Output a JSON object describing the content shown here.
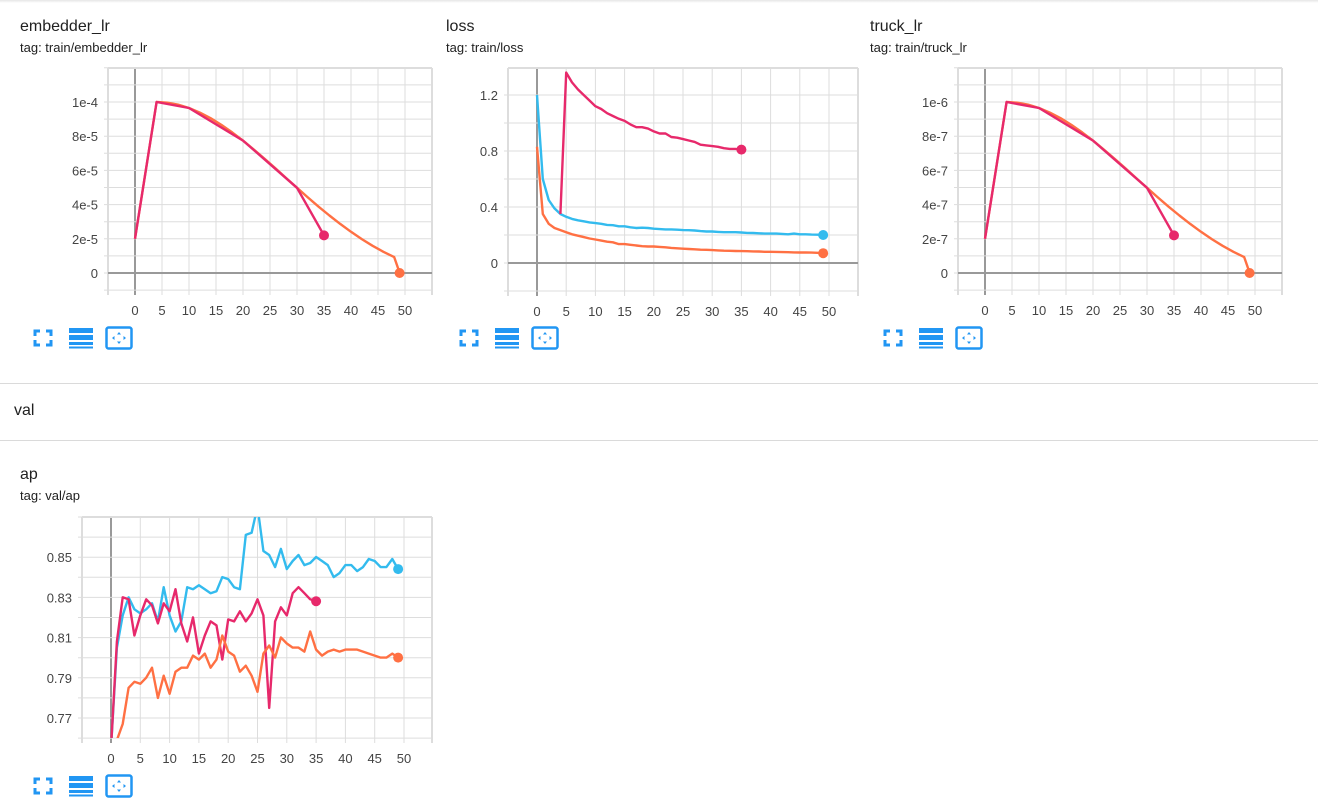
{
  "sections": {
    "val_title": "val"
  },
  "cards": [
    {
      "id": "embedder_lr",
      "title": "embedder_lr",
      "tag": "tag: train/embedder_lr",
      "y_tick_labels": [
        "1e-4",
        "8e-5",
        "6e-5",
        "4e-5",
        "2e-5",
        "0"
      ],
      "x_tick_labels": [
        "0",
        "5",
        "10",
        "15",
        "20",
        "25",
        "30",
        "35",
        "40",
        "45",
        "50"
      ]
    },
    {
      "id": "loss",
      "title": "loss",
      "tag": "tag: train/loss",
      "y_tick_labels": [
        "1.2",
        "0.8",
        "0.4",
        "0"
      ],
      "x_tick_labels": [
        "0",
        "5",
        "10",
        "15",
        "20",
        "25",
        "30",
        "35",
        "40",
        "45",
        "50"
      ]
    },
    {
      "id": "truck_lr",
      "title": "truck_lr",
      "tag": "tag: train/truck_lr",
      "y_tick_labels": [
        "1e-6",
        "8e-7",
        "6e-7",
        "4e-7",
        "2e-7",
        "0"
      ],
      "x_tick_labels": [
        "0",
        "5",
        "10",
        "15",
        "20",
        "25",
        "30",
        "35",
        "40",
        "45",
        "50"
      ]
    },
    {
      "id": "ap",
      "title": "ap",
      "tag": "tag: val/ap",
      "y_tick_labels": [
        "0.85",
        "0.83",
        "0.81",
        "0.79",
        "0.77"
      ],
      "x_tick_labels": [
        "0",
        "5",
        "10",
        "15",
        "20",
        "25",
        "30",
        "35",
        "40",
        "45",
        "50"
      ]
    }
  ],
  "icons": {
    "expand": "fullscreen-icon",
    "data": "list-icon",
    "fit": "fit-domain-icon"
  },
  "colors": {
    "orange": "#ff7043",
    "cyan": "#33bbee",
    "pink": "#e7296b",
    "grid": "#dddddd",
    "axis": "#999999",
    "icon_blue": "#2196f3"
  },
  "chart_data": [
    {
      "type": "line",
      "title": "embedder_lr",
      "subtitle": "tag: train/embedder_lr",
      "xlabel": "",
      "ylabel": "",
      "xlim": [
        -5,
        55
      ],
      "ylim": [
        -1e-05,
        0.00012
      ],
      "grid": true,
      "legend": "none",
      "series": [
        {
          "name": "run-orange",
          "color": "#ff7043",
          "x": [
            0,
            4,
            6,
            8,
            10,
            12,
            14,
            16,
            18,
            20,
            22,
            24,
            26,
            28,
            30,
            32,
            34,
            36,
            38,
            40,
            42,
            44,
            46,
            48,
            49
          ],
          "y": [
            2e-05,
            0.0001,
            9.96e-05,
            9.84e-05,
            9.65e-05,
            9.38e-05,
            9.05e-05,
            8.66e-05,
            8.22e-05,
            7.74e-05,
            7.22e-05,
            6.68e-05,
            6.12e-05,
            5.55e-05,
            4.98e-05,
            4.42e-05,
            3.88e-05,
            3.36e-05,
            2.87e-05,
            2.41e-05,
            1.98e-05,
            1.59e-05,
            1.24e-05,
            9.3e-06,
            2e-07
          ]
        },
        {
          "name": "run-pink",
          "color": "#e7296b",
          "x": [
            0,
            4,
            10,
            20,
            30,
            35
          ],
          "y": [
            2e-05,
            0.0001,
            9.65e-05,
            7.74e-05,
            4.98e-05,
            2.2e-05
          ]
        }
      ],
      "markers": [
        {
          "x": 35,
          "y": 2.2e-05,
          "color": "#e7296b"
        },
        {
          "x": 49,
          "y": 0.0,
          "color": "#ff7043"
        }
      ]
    },
    {
      "type": "line",
      "title": "loss",
      "subtitle": "tag: train/loss",
      "xlabel": "",
      "ylabel": "",
      "xlim": [
        -5,
        55
      ],
      "ylim": [
        -0.2,
        1.4
      ],
      "grid": true,
      "legend": "none",
      "series": [
        {
          "name": "run-cyan",
          "color": "#33bbee",
          "x": [
            0,
            1,
            2,
            3,
            4,
            5,
            6,
            7,
            8,
            9,
            10,
            11,
            12,
            13,
            14,
            15,
            16,
            17,
            18,
            19,
            20,
            21,
            22,
            23,
            24,
            25,
            26,
            27,
            28,
            29,
            30,
            31,
            32,
            33,
            34,
            35,
            36,
            37,
            38,
            39,
            40,
            41,
            42,
            43,
            44,
            45,
            46,
            47,
            48,
            49
          ],
          "y": [
            1.2,
            0.6,
            0.45,
            0.39,
            0.35,
            0.33,
            0.315,
            0.305,
            0.298,
            0.29,
            0.285,
            0.28,
            0.272,
            0.27,
            0.262,
            0.262,
            0.255,
            0.25,
            0.252,
            0.25,
            0.245,
            0.242,
            0.24,
            0.24,
            0.238,
            0.235,
            0.234,
            0.232,
            0.228,
            0.225,
            0.225,
            0.222,
            0.22,
            0.22,
            0.22,
            0.218,
            0.215,
            0.214,
            0.212,
            0.21,
            0.21,
            0.21,
            0.208,
            0.205,
            0.21,
            0.205,
            0.205,
            0.203,
            0.202,
            0.2
          ]
        },
        {
          "name": "run-orange",
          "color": "#ff7043",
          "x": [
            0,
            1,
            2,
            3,
            4,
            5,
            6,
            7,
            8,
            9,
            10,
            11,
            12,
            13,
            14,
            15,
            16,
            17,
            18,
            19,
            20,
            21,
            22,
            23,
            24,
            25,
            26,
            27,
            28,
            29,
            30,
            31,
            32,
            33,
            34,
            35,
            36,
            37,
            38,
            39,
            40,
            41,
            42,
            43,
            44,
            45,
            46,
            47,
            48,
            49
          ],
          "y": [
            0.83,
            0.35,
            0.28,
            0.25,
            0.235,
            0.22,
            0.205,
            0.195,
            0.185,
            0.175,
            0.168,
            0.16,
            0.152,
            0.148,
            0.135,
            0.135,
            0.13,
            0.125,
            0.12,
            0.118,
            0.118,
            0.115,
            0.112,
            0.108,
            0.105,
            0.102,
            0.1,
            0.098,
            0.095,
            0.094,
            0.092,
            0.09,
            0.088,
            0.087,
            0.086,
            0.085,
            0.084,
            0.083,
            0.082,
            0.08,
            0.08,
            0.079,
            0.078,
            0.077,
            0.076,
            0.075,
            0.075,
            0.074,
            0.073,
            0.07
          ]
        },
        {
          "name": "run-pink",
          "color": "#e7296b",
          "x": [
            4,
            5,
            6,
            7,
            8,
            9,
            10,
            11,
            12,
            13,
            14,
            15,
            16,
            17,
            18,
            19,
            20,
            21,
            22,
            23,
            24,
            25,
            26,
            27,
            28,
            29,
            30,
            31,
            32,
            33,
            34,
            35
          ],
          "y": [
            0.35,
            1.36,
            1.29,
            1.24,
            1.2,
            1.16,
            1.12,
            1.1,
            1.07,
            1.05,
            1.03,
            1.015,
            0.99,
            0.97,
            0.97,
            0.96,
            0.94,
            0.925,
            0.925,
            0.9,
            0.895,
            0.885,
            0.875,
            0.865,
            0.845,
            0.84,
            0.835,
            0.83,
            0.82,
            0.815,
            0.815,
            0.81
          ]
        }
      ],
      "markers": [
        {
          "x": 35,
          "y": 0.81,
          "color": "#e7296b"
        },
        {
          "x": 49,
          "y": 0.2,
          "color": "#33bbee"
        },
        {
          "x": 49,
          "y": 0.07,
          "color": "#ff7043"
        }
      ]
    },
    {
      "type": "line",
      "title": "truck_lr",
      "subtitle": "tag: train/truck_lr",
      "xlabel": "",
      "ylabel": "",
      "xlim": [
        -5,
        55
      ],
      "ylim": [
        -1e-07,
        1.2e-06
      ],
      "grid": true,
      "legend": "none",
      "series": [
        {
          "name": "run-orange",
          "color": "#ff7043",
          "x": [
            0,
            4,
            6,
            8,
            10,
            12,
            14,
            16,
            18,
            20,
            22,
            24,
            26,
            28,
            30,
            32,
            34,
            36,
            38,
            40,
            42,
            44,
            46,
            48,
            49
          ],
          "y": [
            2e-07,
            1e-06,
            9.96e-07,
            9.84e-07,
            9.65e-07,
            9.38e-07,
            9.05e-07,
            8.66e-07,
            8.22e-07,
            7.74e-07,
            7.22e-07,
            6.68e-07,
            6.12e-07,
            5.55e-07,
            4.98e-07,
            4.42e-07,
            3.88e-07,
            3.36e-07,
            2.87e-07,
            2.41e-07,
            1.98e-07,
            1.59e-07,
            1.24e-07,
            9.3e-08,
            2e-09
          ]
        },
        {
          "name": "run-pink",
          "color": "#e7296b",
          "x": [
            0,
            4,
            10,
            20,
            30,
            35
          ],
          "y": [
            2e-07,
            1e-06,
            9.65e-07,
            7.74e-07,
            4.98e-07,
            2.2e-07
          ]
        }
      ],
      "markers": [
        {
          "x": 35,
          "y": 2.2e-07,
          "color": "#e7296b"
        },
        {
          "x": 49,
          "y": 0.0,
          "color": "#ff7043"
        }
      ]
    },
    {
      "type": "line",
      "title": "ap",
      "subtitle": "tag: val/ap",
      "xlabel": "",
      "ylabel": "",
      "xlim": [
        -5,
        55
      ],
      "ylim": [
        0.76,
        0.87
      ],
      "grid": true,
      "legend": "none",
      "series": [
        {
          "name": "run-cyan",
          "color": "#33bbee",
          "x": [
            0,
            1,
            2,
            3,
            4,
            5,
            6,
            7,
            8,
            9,
            10,
            11,
            12,
            13,
            14,
            15,
            16,
            17,
            18,
            19,
            20,
            21,
            22,
            23,
            24,
            25,
            26,
            27,
            28,
            29,
            30,
            31,
            32,
            33,
            34,
            35,
            36,
            37,
            38,
            39,
            40,
            41,
            42,
            43,
            44,
            45,
            46,
            47,
            48,
            49
          ],
          "y": [
            0.755,
            0.805,
            0.821,
            0.83,
            0.824,
            0.822,
            0.824,
            0.827,
            0.818,
            0.835,
            0.821,
            0.813,
            0.818,
            0.835,
            0.834,
            0.836,
            0.834,
            0.832,
            0.833,
            0.84,
            0.839,
            0.835,
            0.834,
            0.861,
            0.862,
            0.875,
            0.853,
            0.851,
            0.845,
            0.854,
            0.844,
            0.848,
            0.851,
            0.846,
            0.847,
            0.85,
            0.848,
            0.846,
            0.84,
            0.842,
            0.846,
            0.846,
            0.843,
            0.845,
            0.849,
            0.848,
            0.845,
            0.845,
            0.849,
            0.844
          ]
        },
        {
          "name": "run-pink",
          "color": "#e7296b",
          "x": [
            0,
            1,
            2,
            3,
            4,
            5,
            6,
            7,
            8,
            9,
            10,
            11,
            12,
            13,
            14,
            15,
            16,
            17,
            18,
            19,
            20,
            21,
            22,
            23,
            24,
            25,
            26,
            27,
            28,
            29,
            30,
            31,
            32,
            33,
            34,
            35
          ],
          "y": [
            0.755,
            0.808,
            0.83,
            0.829,
            0.811,
            0.821,
            0.829,
            0.826,
            0.817,
            0.827,
            0.823,
            0.834,
            0.817,
            0.808,
            0.82,
            0.802,
            0.811,
            0.818,
            0.816,
            0.799,
            0.819,
            0.818,
            0.823,
            0.818,
            0.822,
            0.829,
            0.821,
            0.775,
            0.818,
            0.825,
            0.821,
            0.832,
            0.835,
            0.832,
            0.829,
            0.828
          ]
        },
        {
          "name": "run-orange",
          "color": "#ff7043",
          "x": [
            1,
            2,
            3,
            4,
            5,
            6,
            7,
            8,
            9,
            10,
            11,
            12,
            13,
            14,
            15,
            16,
            17,
            18,
            19,
            20,
            21,
            22,
            23,
            24,
            25,
            26,
            27,
            28,
            29,
            30,
            31,
            32,
            33,
            34,
            35,
            36,
            37,
            38,
            39,
            40,
            41,
            42,
            43,
            44,
            45,
            46,
            47,
            48,
            49
          ],
          "y": [
            0.759,
            0.767,
            0.785,
            0.788,
            0.787,
            0.79,
            0.795,
            0.78,
            0.791,
            0.782,
            0.793,
            0.795,
            0.795,
            0.801,
            0.799,
            0.802,
            0.795,
            0.799,
            0.811,
            0.803,
            0.801,
            0.793,
            0.796,
            0.791,
            0.783,
            0.802,
            0.806,
            0.8,
            0.81,
            0.807,
            0.805,
            0.805,
            0.803,
            0.813,
            0.804,
            0.801,
            0.803,
            0.804,
            0.803,
            0.804,
            0.804,
            0.804,
            0.803,
            0.802,
            0.801,
            0.8,
            0.8,
            0.802,
            0.8
          ]
        }
      ],
      "markers": [
        {
          "x": 35,
          "y": 0.828,
          "color": "#e7296b"
        },
        {
          "x": 49,
          "y": 0.844,
          "color": "#33bbee"
        },
        {
          "x": 49,
          "y": 0.8,
          "color": "#ff7043"
        }
      ]
    }
  ]
}
